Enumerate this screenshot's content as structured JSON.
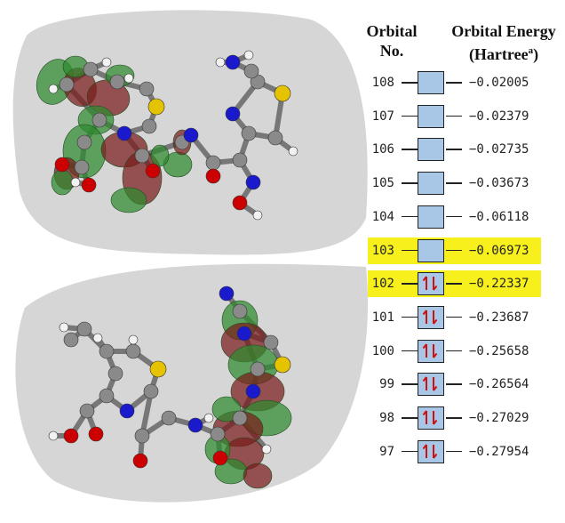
{
  "header": {
    "orbital_line1": "Orbital",
    "orbital_line2": "No.",
    "energy_line1": "Orbital Energy",
    "energy_unit": "(Hartree",
    "energy_sup": "a",
    "energy_close": ")"
  },
  "orbitals": [
    {
      "no": "108",
      "energy": "−0.02005",
      "occupied": false,
      "highlight": false
    },
    {
      "no": "107",
      "energy": "−0.02379",
      "occupied": false,
      "highlight": false
    },
    {
      "no": "106",
      "energy": "−0.02735",
      "occupied": false,
      "highlight": false
    },
    {
      "no": "105",
      "energy": "−0.03673",
      "occupied": false,
      "highlight": false
    },
    {
      "no": "104",
      "energy": "−0.06118",
      "occupied": false,
      "highlight": false
    },
    {
      "no": "103",
      "energy": "−0.06973",
      "occupied": false,
      "highlight": true
    },
    {
      "no": "102",
      "energy": "−0.22337",
      "occupied": true,
      "highlight": true
    },
    {
      "no": "101",
      "energy": "−0.23687",
      "occupied": true,
      "highlight": false
    },
    {
      "no": "100",
      "energy": "−0.25658",
      "occupied": true,
      "highlight": false
    },
    {
      "no": "99",
      "energy": "−0.26564",
      "occupied": true,
      "highlight": false
    },
    {
      "no": "98",
      "energy": "−0.27029",
      "occupied": true,
      "highlight": false
    },
    {
      "no": "97",
      "energy": "−0.27954",
      "occupied": true,
      "highlight": false
    }
  ],
  "colors": {
    "highlight": "#f7f01c",
    "orbital_box": "#a8c6e6",
    "spin_arrow": "#cc1111",
    "lobe_green": "#2e8b2e",
    "lobe_red": "#7a1c1c",
    "bubble": "#d6d6d6",
    "carbon": "#8a8a8a",
    "nitrogen": "#1a1acc",
    "oxygen": "#cc0000",
    "sulfur": "#e6c300",
    "hydrogen": "#f2f2f2"
  }
}
